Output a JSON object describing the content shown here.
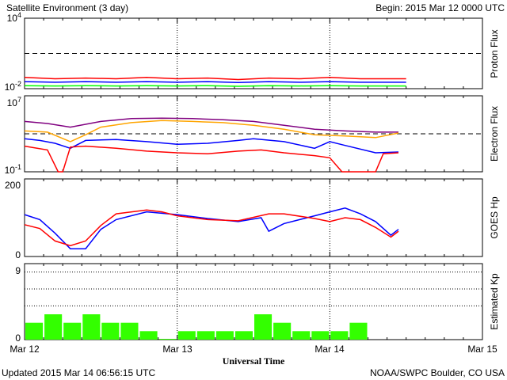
{
  "header": {
    "title": "Satellite Environment (3 day)",
    "begin": "Begin:  2015 Mar 12 0000 UTC"
  },
  "footer": {
    "updated": "Updated 2015 Mar 14 06:56:15 UTC",
    "source": "NOAA/SWPC Boulder, CO USA",
    "xlabel": "Universal Time"
  },
  "x_ticks": [
    "Mar 12",
    "Mar 13",
    "Mar 14",
    "Mar 15"
  ],
  "colors": {
    "red": "#ff0000",
    "blue": "#0000ff",
    "green": "#00ff00",
    "orange": "#ffa500",
    "purple": "#800080",
    "kp_bar": "#33ff00"
  },
  "chart_data": [
    {
      "type": "line",
      "name": "proton",
      "ylabel": "Proton Flux",
      "yscale": "log",
      "ylim": [
        0.01,
        10000
      ],
      "y_tick_labels": [
        "10^4",
        "10^-2"
      ],
      "threshold": 10,
      "xlim_days": [
        0,
        3
      ],
      "series": [
        {
          "color": "red",
          "x": [
            0.0,
            0.2,
            0.4,
            0.6,
            0.8,
            1.0,
            1.2,
            1.4,
            1.6,
            1.8,
            2.0,
            2.2,
            2.4,
            2.5
          ],
          "y": [
            0.09,
            0.07,
            0.08,
            0.07,
            0.09,
            0.07,
            0.08,
            0.06,
            0.08,
            0.07,
            0.09,
            0.07,
            0.07,
            0.07
          ]
        },
        {
          "color": "blue",
          "x": [
            0.0,
            0.2,
            0.4,
            0.6,
            0.8,
            1.0,
            1.2,
            1.4,
            1.6,
            1.8,
            2.0,
            2.2,
            2.4,
            2.5
          ],
          "y": [
            0.04,
            0.035,
            0.04,
            0.035,
            0.04,
            0.035,
            0.04,
            0.033,
            0.04,
            0.035,
            0.04,
            0.035,
            0.035,
            0.035
          ]
        },
        {
          "color": "green",
          "x": [
            0.0,
            0.2,
            0.4,
            0.6,
            0.8,
            1.0,
            1.2,
            1.4,
            1.6,
            1.8,
            2.0,
            2.2,
            2.4,
            2.5
          ],
          "y": [
            0.018,
            0.017,
            0.018,
            0.017,
            0.018,
            0.017,
            0.018,
            0.016,
            0.018,
            0.017,
            0.018,
            0.017,
            0.017,
            0.017
          ]
        }
      ]
    },
    {
      "type": "line",
      "name": "electron",
      "ylabel": "Electron Flux",
      "yscale": "log",
      "ylim": [
        0.1,
        10000000
      ],
      "y_tick_labels": [
        "10^7",
        "10^-1"
      ],
      "threshold": 1000,
      "xlim_days": [
        0,
        3
      ],
      "series": [
        {
          "color": "purple",
          "x": [
            0.0,
            0.15,
            0.3,
            0.5,
            0.7,
            0.9,
            1.1,
            1.3,
            1.5,
            1.7,
            1.9,
            2.1,
            2.3,
            2.45
          ],
          "y": [
            20000,
            12000,
            5000,
            20000,
            40000,
            45000,
            40000,
            30000,
            20000,
            8000,
            3000,
            2000,
            1500,
            1500
          ]
        },
        {
          "color": "orange",
          "x": [
            0.0,
            0.15,
            0.3,
            0.4,
            0.5,
            0.7,
            0.9,
            1.1,
            1.3,
            1.5,
            1.7,
            1.9,
            2.1,
            2.3,
            2.45
          ],
          "y": [
            2000,
            1500,
            150,
            800,
            5000,
            15000,
            25000,
            20000,
            15000,
            8000,
            3000,
            800,
            600,
            400,
            1200
          ]
        },
        {
          "color": "blue",
          "x": [
            0.0,
            0.1,
            0.2,
            0.3,
            0.4,
            0.6,
            0.8,
            1.0,
            1.2,
            1.4,
            1.5,
            1.7,
            1.9,
            2.0,
            2.1,
            2.3,
            2.45
          ],
          "y": [
            300,
            200,
            100,
            30,
            200,
            250,
            150,
            80,
            100,
            200,
            300,
            150,
            30,
            150,
            60,
            10,
            12
          ]
        },
        {
          "color": "red",
          "x": [
            0.0,
            0.15,
            0.22,
            0.25,
            0.3,
            0.4,
            0.6,
            0.8,
            1.0,
            1.2,
            1.4,
            1.55,
            1.7,
            1.9,
            2.0,
            2.08,
            2.15,
            2.3,
            2.35,
            2.45
          ],
          "y": [
            50,
            20,
            0.1,
            0.1,
            40,
            50,
            30,
            15,
            10,
            8,
            15,
            20,
            10,
            5,
            3,
            0.1,
            0.1,
            0.1,
            8,
            10
          ]
        }
      ]
    },
    {
      "type": "line",
      "name": "goes_hp",
      "ylabel": "GOES Hp",
      "ylim": [
        0,
        200
      ],
      "y_tick_labels": [
        "200",
        "0"
      ],
      "xlim_days": [
        0,
        3
      ],
      "series": [
        {
          "color": "blue",
          "x": [
            0.0,
            0.1,
            0.2,
            0.3,
            0.4,
            0.5,
            0.6,
            0.8,
            1.0,
            1.2,
            1.4,
            1.55,
            1.6,
            1.7,
            1.9,
            2.0,
            2.1,
            2.2,
            2.3,
            2.4,
            2.45
          ],
          "y": [
            108,
            95,
            60,
            20,
            20,
            70,
            95,
            115,
            108,
            98,
            90,
            100,
            65,
            85,
            105,
            115,
            125,
            110,
            90,
            55,
            70
          ]
        },
        {
          "color": "red",
          "x": [
            0.0,
            0.1,
            0.2,
            0.3,
            0.4,
            0.5,
            0.6,
            0.8,
            0.9,
            1.0,
            1.2,
            1.4,
            1.6,
            1.7,
            1.9,
            2.0,
            2.1,
            2.2,
            2.3,
            2.4,
            2.45
          ],
          "y": [
            82,
            72,
            40,
            28,
            40,
            80,
            110,
            120,
            115,
            105,
            95,
            92,
            110,
            110,
            98,
            90,
            100,
            95,
            75,
            50,
            65
          ]
        }
      ]
    },
    {
      "type": "bar",
      "name": "kp",
      "ylabel": "Estimated Kp",
      "ylim": [
        0,
        9
      ],
      "y_tick_labels": [
        "9",
        "0"
      ],
      "grid_values": [
        4,
        6,
        8,
        9
      ],
      "bar_width_hours": 3,
      "values": [
        2,
        3,
        2,
        3,
        2,
        2,
        1,
        0,
        1,
        1,
        1,
        1,
        3,
        2,
        1,
        1,
        1,
        2
      ]
    }
  ]
}
